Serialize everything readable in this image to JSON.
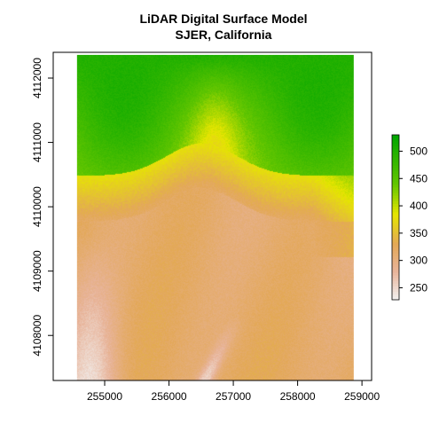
{
  "chart_data": {
    "type": "heatmap",
    "title": "LiDAR Digital Surface Model",
    "subtitle": "SJER, California",
    "xlabel": "",
    "ylabel": "",
    "xlim": [
      254200,
      259150
    ],
    "ylim": [
      4107300,
      4112400
    ],
    "raster_extent": {
      "xmin": 254570,
      "xmax": 258870,
      "ymin": 4107300,
      "ymax": 4112360
    },
    "x_ticks": [
      255000,
      256000,
      257000,
      258000,
      259000
    ],
    "x_tick_labels": [
      "255000",
      "256000",
      "257000",
      "258000",
      "259000"
    ],
    "y_ticks": [
      4108000,
      4109000,
      4110000,
      4111000,
      4112000
    ],
    "y_tick_labels": [
      "4108000",
      "4109000",
      "4110000",
      "4111000",
      "4112000"
    ],
    "legend": {
      "placement": "right",
      "range": [
        228,
        530
      ],
      "ticks": [
        250,
        300,
        350,
        400,
        450,
        500
      ],
      "tick_labels": [
        "250",
        "300",
        "350",
        "400",
        "450",
        "500"
      ]
    },
    "colormap": {
      "name": "terrain",
      "stops": [
        {
          "value": 228,
          "color": "#f2f2f2"
        },
        {
          "value": 280,
          "color": "#e8b49a"
        },
        {
          "value": 330,
          "color": "#e3a857"
        },
        {
          "value": 385,
          "color": "#e6e600"
        },
        {
          "value": 440,
          "color": "#63c600"
        },
        {
          "value": 530,
          "color": "#00a600"
        }
      ]
    },
    "grid": false
  }
}
